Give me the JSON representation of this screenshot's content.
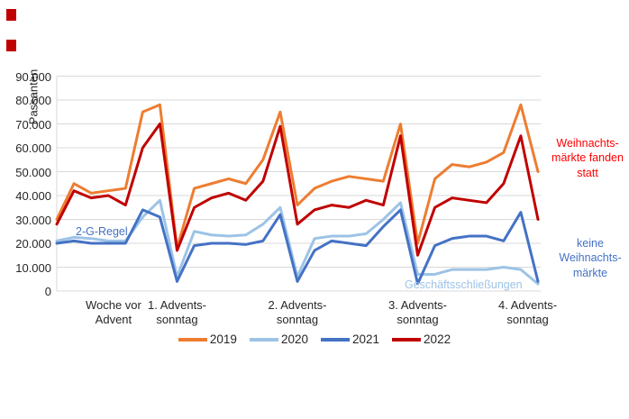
{
  "page": {
    "marker_color": "#C00000"
  },
  "chart_data": {
    "type": "line",
    "title": "",
    "ylabel": "Passanten",
    "xlabel": "",
    "grid": true,
    "legend_position": "bottom",
    "ylim": [
      0,
      90000
    ],
    "y_ticks": [
      "0",
      "10.000",
      "20.000",
      "30.000",
      "40.000",
      "50.000",
      "60.000",
      "70.000",
      "80.000",
      "90.000"
    ],
    "y_tick_values": [
      0,
      10000,
      20000,
      30000,
      40000,
      50000,
      60000,
      70000,
      80000,
      90000
    ],
    "categories": [
      {
        "label": "Woche vor\nAdvent",
        "day_index": 3.3
      },
      {
        "label": "1. Advents-\nsonntag",
        "day_index": 7
      },
      {
        "label": "2. Advents-\nsonntag",
        "day_index": 14
      },
      {
        "label": "3. Advents-\nsonntag",
        "day_index": 21
      },
      {
        "label": "4. Advents-\nsonntag",
        "day_index": 27.4
      }
    ],
    "series": [
      {
        "name": "2019",
        "color": "#ED7D31",
        "values": [
          30000,
          45000,
          41000,
          42000,
          43000,
          75000,
          78000,
          18000,
          43000,
          45000,
          47000,
          45000,
          55000,
          75000,
          36000,
          43000,
          46000,
          48000,
          47000,
          46000,
          70000,
          20000,
          47000,
          53000,
          52000,
          54000,
          58000,
          78000,
          50000
        ]
      },
      {
        "name": "2020",
        "color": "#9DC3E6",
        "values": [
          21000,
          22500,
          22000,
          21000,
          21000,
          31000,
          38000,
          6000,
          25000,
          23500,
          23000,
          23500,
          28000,
          35000,
          6000,
          22000,
          23000,
          23000,
          24000,
          30000,
          37000,
          7000,
          7000,
          9000,
          9000,
          9000,
          10000,
          9000,
          3000
        ]
      },
      {
        "name": "2021",
        "color": "#4472C4",
        "values": [
          20000,
          21000,
          20000,
          20000,
          20000,
          34000,
          31000,
          4000,
          19000,
          20000,
          20000,
          19500,
          21000,
          32000,
          4000,
          17000,
          21000,
          20000,
          19000,
          27000,
          34000,
          3000,
          19000,
          22000,
          23000,
          23000,
          21000,
          33000,
          4000
        ]
      },
      {
        "name": "2022",
        "color": "#C00000",
        "values": [
          28000,
          42000,
          39000,
          40000,
          36000,
          60000,
          70000,
          17000,
          35000,
          39000,
          41000,
          38000,
          46000,
          69000,
          28000,
          34000,
          36000,
          35000,
          38000,
          36000,
          65000,
          15000,
          35000,
          39000,
          38000,
          37000,
          45000,
          65000,
          30000
        ]
      }
    ],
    "annotations": [
      {
        "id": "2g",
        "text": "2-G-Regel",
        "color": "#4472C4"
      },
      {
        "id": "closed",
        "text": "Geschäftsschließungen",
        "color": "#9DC3E6"
      },
      {
        "id": "markets",
        "text": "Weihnachts-\nmärkte fanden\nstatt",
        "color": "#FF0000"
      },
      {
        "id": "keine",
        "text": "keine\nWeihnachts-\nmärkte",
        "color": "#4472C4"
      }
    ],
    "grid_color": "#D9D9D9"
  }
}
